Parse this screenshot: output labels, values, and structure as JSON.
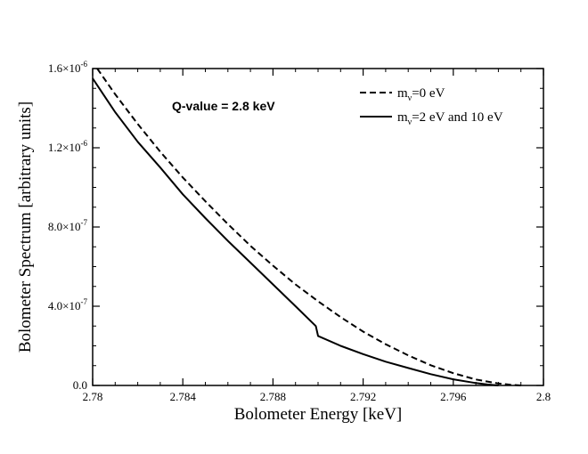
{
  "chart_data": {
    "type": "line",
    "xlabel": "Bolometer Energy [keV]",
    "ylabel": "Bolometer Spectrum [arbitrary units]",
    "xlim": [
      2.78,
      2.8
    ],
    "ylim": [
      0,
      1.6e-06
    ],
    "x_ticks": [
      2.78,
      2.784,
      2.788,
      2.792,
      2.796,
      2.8
    ],
    "x_tick_labels": [
      "2.78",
      "2.784",
      "2.788",
      "2.792",
      "2.796",
      "2.8"
    ],
    "y_ticks": [
      {
        "value": 0,
        "mantissa": "0.0",
        "exp": ""
      },
      {
        "value": 4e-07,
        "mantissa": "4.0×10",
        "exp": "-7"
      },
      {
        "value": 8e-07,
        "mantissa": "8.0×10",
        "exp": "-7"
      },
      {
        "value": 1.2e-06,
        "mantissa": "1.2×10",
        "exp": "-6"
      },
      {
        "value": 1.6e-06,
        "mantissa": "1.6×10",
        "exp": "-6"
      }
    ],
    "annotation": "Q-value = 2.8 keV",
    "legend": [
      {
        "prefix": "m",
        "sub": "ν",
        "suffix": "=0 eV",
        "style": "dashed"
      },
      {
        "prefix": "m",
        "sub": "ν",
        "suffix": "=2 eV and 10 eV",
        "style": "solid"
      }
    ],
    "series": [
      {
        "name": "mν=0 eV",
        "style": "dashed",
        "x": [
          2.7802,
          2.781,
          2.782,
          2.783,
          2.784,
          2.785,
          2.786,
          2.787,
          2.788,
          2.789,
          2.79,
          2.791,
          2.792,
          2.793,
          2.794,
          2.795,
          2.796,
          2.797,
          2.798,
          2.7985,
          2.799
        ],
        "y": [
          1.6e-06,
          1.47e-06,
          1.32e-06,
          1.18e-06,
          1.05e-06,
          9.3e-07,
          8.15e-07,
          7.05e-07,
          6.05e-07,
          5.1e-07,
          4.25e-07,
          3.45e-07,
          2.72e-07,
          2.08e-07,
          1.52e-07,
          1.02e-07,
          6.2e-08,
          3e-08,
          1e-08,
          4e-09,
          0
        ]
      },
      {
        "name": "mν=2 eV and 10 eV",
        "style": "solid",
        "x": [
          2.78,
          2.781,
          2.782,
          2.783,
          2.784,
          2.785,
          2.786,
          2.787,
          2.788,
          2.789,
          2.7899,
          2.79,
          2.791,
          2.792,
          2.793,
          2.794,
          2.795,
          2.796,
          2.797,
          2.7975,
          2.798
        ],
        "y": [
          1.55e-06,
          1.38e-06,
          1.23e-06,
          1.1e-06,
          9.65e-07,
          8.45e-07,
          7.3e-07,
          6.2e-07,
          5.1e-07,
          4e-07,
          3e-07,
          2.5e-07,
          2e-07,
          1.58e-07,
          1.2e-07,
          8.8e-08,
          5.7e-08,
          3.1e-08,
          1.2e-08,
          5e-09,
          0
        ]
      }
    ]
  }
}
